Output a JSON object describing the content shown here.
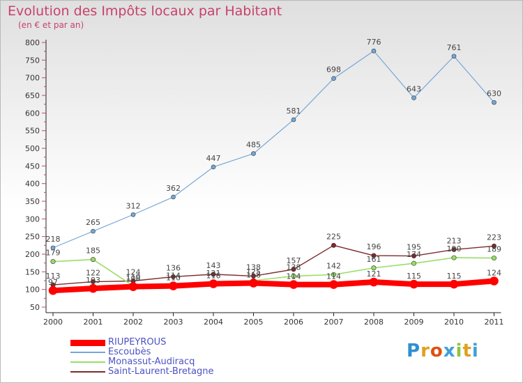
{
  "header": {
    "title": "Evolution des Impôts locaux par Habitant",
    "subtitle": "(en € et par an)"
  },
  "logo": {
    "text": "Proxiti",
    "icon": "proxiti-logo"
  },
  "chart_data": {
    "type": "line",
    "title": "Evolution des Impôts locaux par Habitant",
    "subtitle": "(en € et par an)",
    "xlabel": "",
    "ylabel": "",
    "ylim": [
      50,
      800
    ],
    "yticks": [
      50,
      100,
      150,
      200,
      250,
      300,
      350,
      400,
      450,
      500,
      550,
      600,
      650,
      700,
      750,
      800
    ],
    "categories": [
      "2000",
      "2001",
      "2002",
      "2003",
      "2004",
      "2005",
      "2006",
      "2007",
      "2008",
      "2009",
      "2010",
      "2011"
    ],
    "grid": false,
    "legend_position": "bottom-left",
    "series": [
      {
        "name": "RIUPEYROUS",
        "color": "#ff0000",
        "values": [
          97,
          103,
          108,
          110,
          116,
          118,
          114,
          114,
          121,
          115,
          115,
          124
        ],
        "labels": [
          "97",
          "103",
          "108",
          "110",
          "116",
          "118",
          "114",
          "114",
          "121",
          "115",
          "115",
          "124"
        ]
      },
      {
        "name": "Escoubès",
        "color": "#76a7d6",
        "values": [
          218,
          265,
          312,
          362,
          447,
          485,
          581,
          698,
          776,
          643,
          761,
          630
        ],
        "labels": [
          "218",
          "265",
          "312",
          "362",
          "447",
          "485",
          "581",
          "698",
          "776",
          "643",
          "761",
          "630"
        ]
      },
      {
        "name": "Monassut-Audiracq",
        "color": "#99dd66",
        "values": [
          179,
          185,
          110,
          114,
          121,
          125,
          138,
          142,
          161,
          174,
          190,
          189
        ],
        "labels": [
          "179",
          "185",
          "110",
          "114",
          "121",
          "125",
          "138",
          "142",
          "161",
          "174",
          "190",
          "189"
        ]
      },
      {
        "name": "Saint-Laurent-Bretagne",
        "color": "#7d2b2b",
        "values": [
          113,
          122,
          124,
          136,
          143,
          138,
          157,
          225,
          196,
          195,
          213,
          223
        ],
        "labels": [
          "113",
          "122",
          "124",
          "136",
          "143",
          "138",
          "157",
          "225",
          "196",
          "195",
          "213",
          "223"
        ]
      }
    ]
  }
}
